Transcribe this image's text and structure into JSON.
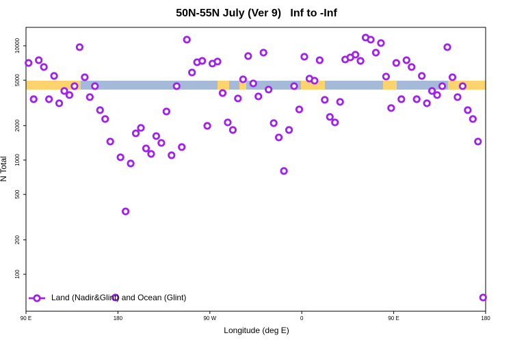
{
  "chart_data": {
    "type": "scatter",
    "title": "50N-55N July (Ver 9)   Inf to -Inf",
    "xlabel": "Longitude (deg E)",
    "ylabel": "N Total",
    "xlim": [
      90,
      540
    ],
    "xticks": [
      {
        "value": 90,
        "label": "90 E"
      },
      180,
      {
        "value": 270,
        "label": "90 W"
      },
      {
        "value": 360,
        "label": "0"
      },
      {
        "value": 450,
        "label": "90 E"
      },
      {
        "value": 540,
        "label": "180"
      }
    ],
    "ylim": [
      47.5,
      14500
    ],
    "log_y": true,
    "yticks": [
      100,
      200,
      500,
      1000,
      2000,
      5000,
      10000
    ],
    "legend": "bottom-left",
    "series": [
      {
        "name": "Land (Nadir&Glint) and Ocean (Glint)",
        "color": "#a020f0",
        "x": [
          92.5,
          97.5,
          102.5,
          107.5,
          112.5,
          117.5,
          122.5,
          127.5,
          132.5,
          137.5,
          142.5,
          147.5,
          152.5,
          157.5,
          162.5,
          167.5,
          172.5,
          177.5,
          182.5,
          187.5,
          192.5,
          197.5,
          202.5,
          207.5,
          212.5,
          217.5,
          222.5,
          227.5,
          232.5,
          237.5,
          242.5,
          247.5,
          252.5,
          257.5,
          262.5,
          267.5,
          272.5,
          277.5,
          282.5,
          287.5,
          292.5,
          297.5,
          302.5,
          307.5,
          312.5,
          317.5,
          322.5,
          327.5,
          332.5,
          337.5,
          342.5,
          347.5,
          352.5,
          357.5,
          362.5,
          367.5,
          372.5,
          377.5,
          382.5,
          387.5,
          392.5,
          397.5,
          402.5,
          407.5,
          412.5,
          417.5,
          422.5,
          427.5,
          432.5,
          437.5,
          442.5,
          447.5,
          452.5,
          457.5,
          462.5,
          467.5,
          472.5,
          477.5,
          482.5,
          487.5,
          492.5,
          497.5,
          502.5,
          507.5,
          512.5,
          517.5,
          522.5,
          527.5,
          532.5,
          537.5
        ],
        "values": [
          7080,
          3410,
          7480,
          6520,
          3410,
          5450,
          3140,
          4025,
          3705,
          4435,
          9730,
          5305,
          3555,
          4435,
          2735,
          2287,
          1452,
          62.6,
          1057,
          355,
          933,
          1713,
          1912,
          1264,
          1132,
          1621,
          1412,
          2661,
          1101,
          4435,
          1299,
          11320,
          5840,
          7180,
          7380,
          1992,
          6990,
          7280,
          3860,
          2135,
          1834,
          3460,
          5090,
          8130,
          4685,
          3605,
          8710,
          4140,
          2105,
          1577,
          802,
          1834,
          4435,
          2774,
          8020,
          5160,
          4950,
          7480,
          3365,
          2385,
          2135,
          3230,
          7590,
          7910,
          8360,
          7380,
          11800,
          11320,
          8710,
          10570,
          5380,
          2852,
          7080,
          3410,
          7480,
          6520,
          3410,
          5450,
          3140,
          4025,
          3705,
          4435,
          9730,
          5305,
          3555,
          4435,
          2735,
          2287,
          1452,
          62.6
        ]
      }
    ]
  }
}
